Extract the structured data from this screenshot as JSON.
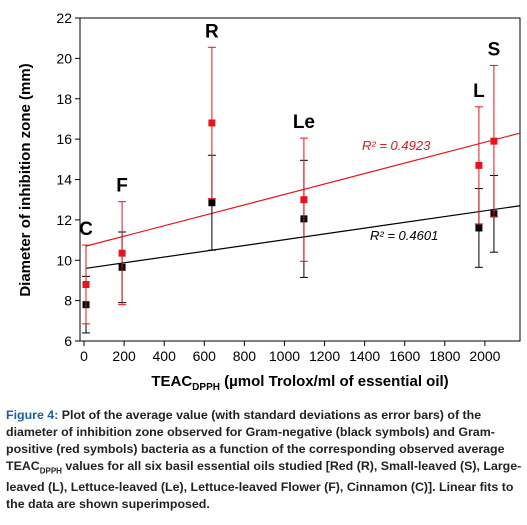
{
  "chart_data": {
    "type": "scatter",
    "y_label": "Diameter of inhibition zone (mm)",
    "x_label": {
      "main": "TEAC",
      "sub": "DPPH",
      "rest": " (µmol Trolox/ml of essential oil)"
    },
    "x": [
      10,
      190,
      638,
      1097,
      1970,
      2045
    ],
    "point_labels": [
      "C",
      "F",
      "R",
      "Le",
      "L",
      "S"
    ],
    "series": [
      {
        "color": "#000000",
        "values": [
          7.8,
          9.65,
          12.85,
          12.05,
          11.6,
          12.3
        ],
        "errors": [
          1.4,
          1.75,
          2.35,
          2.9,
          1.95,
          1.9
        ]
      },
      {
        "color": "#e8141c",
        "values": [
          8.8,
          10.35,
          16.8,
          13.0,
          14.7,
          15.9
        ],
        "errors": [
          1.95,
          2.55,
          3.75,
          3.05,
          2.9,
          3.75
        ]
      }
    ],
    "fits": [
      {
        "color": "#000000",
        "x": [
          10,
          2175
        ],
        "values": [
          9.6,
          12.7
        ],
        "label": "R² = 0.4601"
      },
      {
        "color": "#e8141c",
        "x": [
          10,
          2175
        ],
        "values": [
          10.7,
          16.3
        ],
        "label": "R² = 0.4923"
      }
    ],
    "xlim": [
      -20,
      2175
    ],
    "ylim": [
      6,
      22
    ],
    "xticks": [
      0,
      200,
      400,
      600,
      800,
      1000,
      1200,
      1400,
      1600,
      1800,
      2000
    ],
    "yticks": [
      6,
      8,
      10,
      12,
      14,
      16,
      18,
      20,
      22
    ],
    "caption": {
      "label": "Figure 4:",
      "text1": " Plot of the average value (with standard deviations as error bars) of the diameter of inhibition zone observed for Gram-negative (black symbols) and Gram-positive (red symbols) bacteria as a function of the corresponding observed average TEAC",
      "sub": "DPPH",
      "text2": " values for all six basil essential oils studied [Red (R), Small-leaved (S), Large-leaved (L), Lettuce-leaved (Le), Lettuce-leaved Flower (F), Cinnamon (C)]. Linear fits to the data are shown superimposed."
    }
  }
}
